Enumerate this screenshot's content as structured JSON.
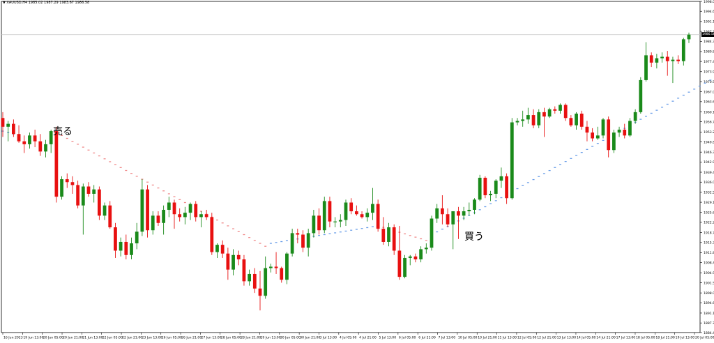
{
  "header": {
    "symbol_line": "▼ XAUUSD,H4  1985.02 1987.29 1983.67 1986.58"
  },
  "current_price": {
    "value": 1986.58,
    "label": "1986.58"
  },
  "annotations": {
    "sell": "売る",
    "buy": "買う"
  },
  "colors": {
    "bull": "#1a8a1a",
    "bear": "#e81010",
    "sar_down": "#f08a8a",
    "sar_up": "#6a9ee8",
    "grid": "#000000",
    "price_line": "#c8c8c8"
  },
  "chart_data": {
    "type": "candlestick",
    "title": "",
    "ylim": [
      1884.4,
      1998.0
    ],
    "y_ticks": [
      "1998.00",
      "1994.60",
      "1991.10",
      "1987.70",
      "1984.30",
      "1980.80",
      "1977.40",
      "1973.90",
      "1970.50",
      "1967.00",
      "1963.60",
      "1960.10",
      "1956.70",
      "1953.20",
      "1949.80",
      "1946.30",
      "1942.90",
      "1939.40",
      "1936.00",
      "1932.50",
      "1929.10",
      "1925.60",
      "1922.20",
      "1918.70",
      "1915.30",
      "1911.80",
      "1908.40",
      "1904.90",
      "1901.50",
      "1898.00",
      "1894.60",
      "1891.10",
      "1887.70",
      "1884.40"
    ],
    "x_ticks": [
      "16 Jun 2023",
      "19 Jun 13:00",
      "20 Jun 05:00",
      "20 Jun 21:00",
      "21 Jun 13:00",
      "22 Jun 05:00",
      "22 Jun 21:00",
      "23 Jun 13:00",
      "26 Jun 05:00",
      "26 Jun 21:00",
      "27 Jun 13:00",
      "28 Jun 05:00",
      "28 Jun 21:00",
      "29 Jun 13:00",
      "30 Jun 05:00",
      "30 Jun 21:00",
      "3 Jul 13:00",
      "4 Jul 05:00",
      "4 Jul 21:00",
      "5 Jul 13:00",
      "6 Jul 05:00",
      "6 Jul 21:00",
      "7 Jul 13:00",
      "10 Jul 05:00",
      "10 Jul 21:00",
      "11 Jul 13:00",
      "12 Jul 05:00",
      "12 Jul 21:00",
      "13 Jul 13:00",
      "14 Jul 05:00",
      "14 Jul 21:00",
      "17 Jul 13:00",
      "18 Jul 05:00",
      "18 Jul 21:00",
      "19 Jul 13:00",
      "20 Jul 05:00"
    ],
    "candles": [
      {
        "o": 1958.0,
        "h": 1960.0,
        "l": 1951.5,
        "c": 1955.0
      },
      {
        "o": 1955.0,
        "h": 1957.0,
        "l": 1950.0,
        "c": 1956.0
      },
      {
        "o": 1956.0,
        "h": 1957.5,
        "l": 1951.5,
        "c": 1952.5
      },
      {
        "o": 1952.5,
        "h": 1955.5,
        "l": 1949.5,
        "c": 1950.0
      },
      {
        "o": 1950.0,
        "h": 1952.0,
        "l": 1946.0,
        "c": 1949.0
      },
      {
        "o": 1949.0,
        "h": 1953.0,
        "l": 1947.5,
        "c": 1952.0
      },
      {
        "o": 1952.0,
        "h": 1954.0,
        "l": 1948.0,
        "c": 1950.0
      },
      {
        "o": 1950.0,
        "h": 1952.5,
        "l": 1945.0,
        "c": 1946.5
      },
      {
        "o": 1946.5,
        "h": 1950.5,
        "l": 1944.5,
        "c": 1949.0
      },
      {
        "o": 1949.0,
        "h": 1954.0,
        "l": 1946.0,
        "c": 1953.5
      },
      {
        "o": 1953.5,
        "h": 1955.0,
        "l": 1929.0,
        "c": 1931.0
      },
      {
        "o": 1931.0,
        "h": 1938.0,
        "l": 1930.0,
        "c": 1937.0
      },
      {
        "o": 1937.0,
        "h": 1939.0,
        "l": 1934.0,
        "c": 1936.0
      },
      {
        "o": 1936.0,
        "h": 1938.0,
        "l": 1932.0,
        "c": 1935.0
      },
      {
        "o": 1935.0,
        "h": 1936.5,
        "l": 1927.0,
        "c": 1928.0
      },
      {
        "o": 1928.0,
        "h": 1935.5,
        "l": 1918.0,
        "c": 1934.5
      },
      {
        "o": 1934.5,
        "h": 1936.0,
        "l": 1931.0,
        "c": 1932.0
      },
      {
        "o": 1932.0,
        "h": 1935.0,
        "l": 1929.0,
        "c": 1933.5
      },
      {
        "o": 1933.5,
        "h": 1934.5,
        "l": 1923.0,
        "c": 1924.5
      },
      {
        "o": 1924.5,
        "h": 1929.0,
        "l": 1923.0,
        "c": 1928.0
      },
      {
        "o": 1928.0,
        "h": 1929.5,
        "l": 1920.0,
        "c": 1920.5
      },
      {
        "o": 1920.5,
        "h": 1922.0,
        "l": 1910.0,
        "c": 1912.5
      },
      {
        "o": 1912.5,
        "h": 1917.0,
        "l": 1910.5,
        "c": 1915.5
      },
      {
        "o": 1915.5,
        "h": 1918.0,
        "l": 1909.5,
        "c": 1911.0
      },
      {
        "o": 1911.0,
        "h": 1917.0,
        "l": 1909.5,
        "c": 1915.0
      },
      {
        "o": 1915.0,
        "h": 1922.0,
        "l": 1913.0,
        "c": 1919.0
      },
      {
        "o": 1919.0,
        "h": 1937.0,
        "l": 1917.5,
        "c": 1933.5
      },
      {
        "o": 1933.5,
        "h": 1935.0,
        "l": 1917.0,
        "c": 1919.5
      },
      {
        "o": 1919.5,
        "h": 1926.0,
        "l": 1918.0,
        "c": 1924.5
      },
      {
        "o": 1924.5,
        "h": 1926.0,
        "l": 1921.0,
        "c": 1922.0
      },
      {
        "o": 1922.0,
        "h": 1928.0,
        "l": 1918.0,
        "c": 1926.5
      },
      {
        "o": 1926.5,
        "h": 1931.0,
        "l": 1924.0,
        "c": 1929.0
      },
      {
        "o": 1929.0,
        "h": 1930.0,
        "l": 1920.0,
        "c": 1925.0
      },
      {
        "o": 1925.0,
        "h": 1927.0,
        "l": 1922.5,
        "c": 1924.0
      },
      {
        "o": 1924.0,
        "h": 1927.5,
        "l": 1921.5,
        "c": 1925.5
      },
      {
        "o": 1925.5,
        "h": 1929.0,
        "l": 1923.0,
        "c": 1928.5
      },
      {
        "o": 1928.5,
        "h": 1929.5,
        "l": 1922.5,
        "c": 1924.0
      },
      {
        "o": 1924.0,
        "h": 1926.0,
        "l": 1920.5,
        "c": 1925.0
      },
      {
        "o": 1925.0,
        "h": 1926.5,
        "l": 1923.0,
        "c": 1924.0
      },
      {
        "o": 1924.0,
        "h": 1925.5,
        "l": 1911.0,
        "c": 1912.0
      },
      {
        "o": 1912.0,
        "h": 1915.0,
        "l": 1910.0,
        "c": 1914.5
      },
      {
        "o": 1914.5,
        "h": 1916.0,
        "l": 1910.0,
        "c": 1911.5
      },
      {
        "o": 1911.5,
        "h": 1913.5,
        "l": 1902.5,
        "c": 1906.0
      },
      {
        "o": 1906.0,
        "h": 1913.0,
        "l": 1904.0,
        "c": 1911.0
      },
      {
        "o": 1911.0,
        "h": 1912.5,
        "l": 1907.5,
        "c": 1909.5
      },
      {
        "o": 1909.5,
        "h": 1911.0,
        "l": 1900.5,
        "c": 1902.0
      },
      {
        "o": 1902.0,
        "h": 1906.0,
        "l": 1900.5,
        "c": 1904.5
      },
      {
        "o": 1904.5,
        "h": 1906.5,
        "l": 1898.0,
        "c": 1899.5
      },
      {
        "o": 1899.5,
        "h": 1905.5,
        "l": 1892.0,
        "c": 1897.0
      },
      {
        "o": 1897.0,
        "h": 1910.5,
        "l": 1896.0,
        "c": 1906.5
      },
      {
        "o": 1906.5,
        "h": 1908.0,
        "l": 1905.0,
        "c": 1907.0
      },
      {
        "o": 1907.0,
        "h": 1912.0,
        "l": 1904.5,
        "c": 1906.5
      },
      {
        "o": 1906.5,
        "h": 1907.0,
        "l": 1901.5,
        "c": 1902.5
      },
      {
        "o": 1902.5,
        "h": 1912.0,
        "l": 1901.0,
        "c": 1911.5
      },
      {
        "o": 1911.5,
        "h": 1920.0,
        "l": 1910.5,
        "c": 1918.5
      },
      {
        "o": 1918.5,
        "h": 1920.0,
        "l": 1915.0,
        "c": 1918.0
      },
      {
        "o": 1918.0,
        "h": 1919.5,
        "l": 1912.0,
        "c": 1913.5
      },
      {
        "o": 1913.5,
        "h": 1920.0,
        "l": 1910.5,
        "c": 1918.5
      },
      {
        "o": 1918.5,
        "h": 1926.5,
        "l": 1917.0,
        "c": 1924.5
      },
      {
        "o": 1924.5,
        "h": 1927.0,
        "l": 1918.0,
        "c": 1919.5
      },
      {
        "o": 1919.5,
        "h": 1931.0,
        "l": 1918.5,
        "c": 1929.5
      },
      {
        "o": 1929.5,
        "h": 1931.0,
        "l": 1920.5,
        "c": 1922.5
      },
      {
        "o": 1922.5,
        "h": 1924.0,
        "l": 1920.5,
        "c": 1922.5
      },
      {
        "o": 1922.5,
        "h": 1925.0,
        "l": 1920.5,
        "c": 1923.0
      },
      {
        "o": 1923.0,
        "h": 1930.0,
        "l": 1921.0,
        "c": 1929.0
      },
      {
        "o": 1929.0,
        "h": 1930.5,
        "l": 1925.0,
        "c": 1926.0
      },
      {
        "o": 1926.0,
        "h": 1928.0,
        "l": 1924.5,
        "c": 1925.0
      },
      {
        "o": 1925.0,
        "h": 1926.0,
        "l": 1923.5,
        "c": 1924.0
      },
      {
        "o": 1924.0,
        "h": 1927.0,
        "l": 1922.5,
        "c": 1925.5
      },
      {
        "o": 1925.5,
        "h": 1934.0,
        "l": 1923.0,
        "c": 1928.5
      },
      {
        "o": 1928.5,
        "h": 1930.0,
        "l": 1919.0,
        "c": 1920.0
      },
      {
        "o": 1920.0,
        "h": 1924.0,
        "l": 1914.5,
        "c": 1915.5
      },
      {
        "o": 1915.5,
        "h": 1922.0,
        "l": 1914.0,
        "c": 1920.5
      },
      {
        "o": 1920.5,
        "h": 1921.5,
        "l": 1911.0,
        "c": 1912.5
      },
      {
        "o": 1912.5,
        "h": 1921.0,
        "l": 1902.5,
        "c": 1903.5
      },
      {
        "o": 1903.5,
        "h": 1911.0,
        "l": 1903.0,
        "c": 1910.0
      },
      {
        "o": 1910.0,
        "h": 1911.0,
        "l": 1907.5,
        "c": 1910.5
      },
      {
        "o": 1910.5,
        "h": 1911.5,
        "l": 1908.5,
        "c": 1909.5
      },
      {
        "o": 1909.5,
        "h": 1914.0,
        "l": 1908.5,
        "c": 1913.0
      },
      {
        "o": 1913.0,
        "h": 1915.0,
        "l": 1911.5,
        "c": 1913.5
      },
      {
        "o": 1913.5,
        "h": 1924.5,
        "l": 1912.5,
        "c": 1923.5
      },
      {
        "o": 1923.5,
        "h": 1928.5,
        "l": 1922.0,
        "c": 1927.0
      },
      {
        "o": 1927.0,
        "h": 1931.5,
        "l": 1921.5,
        "c": 1925.0
      },
      {
        "o": 1925.0,
        "h": 1927.0,
        "l": 1920.5,
        "c": 1921.5
      },
      {
        "o": 1921.5,
        "h": 1926.0,
        "l": 1913.0,
        "c": 1926.0
      },
      {
        "o": 1926.0,
        "h": 1927.5,
        "l": 1916.5,
        "c": 1924.5
      },
      {
        "o": 1924.5,
        "h": 1927.5,
        "l": 1923.0,
        "c": 1926.0
      },
      {
        "o": 1926.0,
        "h": 1929.0,
        "l": 1924.5,
        "c": 1926.5
      },
      {
        "o": 1926.5,
        "h": 1930.5,
        "l": 1925.0,
        "c": 1930.0
      },
      {
        "o": 1930.0,
        "h": 1938.5,
        "l": 1929.5,
        "c": 1937.5
      },
      {
        "o": 1937.5,
        "h": 1938.0,
        "l": 1930.5,
        "c": 1931.5
      },
      {
        "o": 1931.5,
        "h": 1933.0,
        "l": 1929.5,
        "c": 1932.0
      },
      {
        "o": 1932.0,
        "h": 1937.0,
        "l": 1930.5,
        "c": 1936.5
      },
      {
        "o": 1936.5,
        "h": 1941.0,
        "l": 1934.0,
        "c": 1938.0
      },
      {
        "o": 1938.0,
        "h": 1939.0,
        "l": 1928.5,
        "c": 1930.5
      },
      {
        "o": 1930.5,
        "h": 1958.0,
        "l": 1930.0,
        "c": 1956.5
      },
      {
        "o": 1956.5,
        "h": 1958.0,
        "l": 1955.5,
        "c": 1957.0
      },
      {
        "o": 1957.0,
        "h": 1960.5,
        "l": 1955.0,
        "c": 1957.5
      },
      {
        "o": 1957.5,
        "h": 1961.5,
        "l": 1956.0,
        "c": 1959.0
      },
      {
        "o": 1959.0,
        "h": 1961.0,
        "l": 1954.5,
        "c": 1955.5
      },
      {
        "o": 1955.5,
        "h": 1961.0,
        "l": 1954.5,
        "c": 1960.0
      },
      {
        "o": 1960.0,
        "h": 1961.5,
        "l": 1951.5,
        "c": 1958.5
      },
      {
        "o": 1958.5,
        "h": 1961.5,
        "l": 1958.0,
        "c": 1961.0
      },
      {
        "o": 1961.0,
        "h": 1962.0,
        "l": 1959.5,
        "c": 1960.5
      },
      {
        "o": 1960.5,
        "h": 1963.0,
        "l": 1959.5,
        "c": 1962.5
      },
      {
        "o": 1962.5,
        "h": 1963.0,
        "l": 1957.0,
        "c": 1958.0
      },
      {
        "o": 1958.0,
        "h": 1959.0,
        "l": 1955.0,
        "c": 1955.5
      },
      {
        "o": 1955.5,
        "h": 1960.0,
        "l": 1954.0,
        "c": 1959.5
      },
      {
        "o": 1959.5,
        "h": 1960.5,
        "l": 1954.0,
        "c": 1955.0
      },
      {
        "o": 1955.0,
        "h": 1957.0,
        "l": 1950.0,
        "c": 1953.0
      },
      {
        "o": 1953.0,
        "h": 1954.5,
        "l": 1950.0,
        "c": 1951.0
      },
      {
        "o": 1951.0,
        "h": 1955.0,
        "l": 1950.5,
        "c": 1952.0
      },
      {
        "o": 1952.0,
        "h": 1958.0,
        "l": 1951.0,
        "c": 1957.5
      },
      {
        "o": 1957.5,
        "h": 1958.5,
        "l": 1944.5,
        "c": 1947.0
      },
      {
        "o": 1947.0,
        "h": 1954.0,
        "l": 1946.0,
        "c": 1953.0
      },
      {
        "o": 1953.0,
        "h": 1955.0,
        "l": 1951.5,
        "c": 1954.0
      },
      {
        "o": 1954.0,
        "h": 1956.0,
        "l": 1951.0,
        "c": 1952.0
      },
      {
        "o": 1952.0,
        "h": 1958.0,
        "l": 1951.5,
        "c": 1957.0
      },
      {
        "o": 1957.0,
        "h": 1961.0,
        "l": 1956.0,
        "c": 1960.0
      },
      {
        "o": 1960.0,
        "h": 1972.0,
        "l": 1959.5,
        "c": 1971.0
      },
      {
        "o": 1971.0,
        "h": 1984.0,
        "l": 1970.5,
        "c": 1979.5
      },
      {
        "o": 1979.5,
        "h": 1980.5,
        "l": 1975.5,
        "c": 1977.0
      },
      {
        "o": 1977.0,
        "h": 1980.0,
        "l": 1975.0,
        "c": 1978.5
      },
      {
        "o": 1978.5,
        "h": 1980.5,
        "l": 1977.0,
        "c": 1979.0
      },
      {
        "o": 1979.0,
        "h": 1981.0,
        "l": 1972.5,
        "c": 1977.5
      },
      {
        "o": 1977.5,
        "h": 1979.0,
        "l": 1970.0,
        "c": 1978.0
      },
      {
        "o": 1978.0,
        "h": 1979.5,
        "l": 1976.5,
        "c": 1977.5
      },
      {
        "o": 1977.5,
        "h": 1985.5,
        "l": 1976.0,
        "c": 1985.0
      },
      {
        "o": 1985.0,
        "h": 1987.3,
        "l": 1983.7,
        "c": 1986.6
      }
    ],
    "sar": {
      "down_start": 10,
      "down_end": 49,
      "down_start_val": 1953.0,
      "down_end_val": 1914.0,
      "pre_dots": [
        [
          0,
          1953.5
        ],
        [
          1,
          1953.0
        ],
        [
          2,
          1952.5
        ]
      ],
      "up_start": 50,
      "up_end": 88,
      "up_start_val": 1915.0,
      "up_end_val": 1925.5,
      "down2_start": 71,
      "down2_end": 79,
      "down2_start_val": 1920.5,
      "down2_end_val": 1916.0,
      "up2_start": 88,
      "up2_end": 132,
      "up2_start_val": 1925.5,
      "up2_end_val": 1971.0
    }
  }
}
